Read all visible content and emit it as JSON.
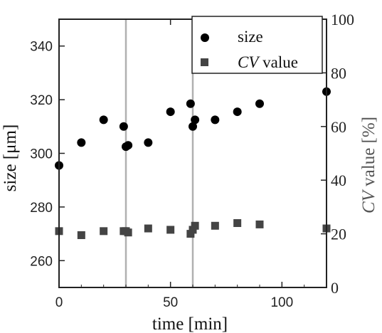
{
  "chart_data": {
    "type": "scatter",
    "xlabel": "time [min]",
    "ylabel": "size [μm]",
    "y2label": "CV value [%]",
    "y2label_italic_part": "CV",
    "y2label_rest": " value [%]",
    "xlim": [
      0,
      120
    ],
    "ylim": [
      250,
      350
    ],
    "y2lim": [
      0,
      100
    ],
    "x_ticks": [
      "0",
      "50",
      "100"
    ],
    "y_ticks": [
      "260",
      "280",
      "300",
      "320",
      "340"
    ],
    "y2_ticks": [
      "0",
      "20",
      "40",
      "60",
      "80",
      "100"
    ],
    "grid": false,
    "legend_position": "top-right",
    "vertical_lines_x": [
      30,
      60
    ],
    "series": [
      {
        "name": "size",
        "axis": "left",
        "marker": "circle",
        "color": "#000000",
        "x": [
          0,
          10,
          20,
          29,
          30,
          31,
          40,
          50,
          59,
          60,
          61,
          70,
          80,
          90,
          120
        ],
        "y": [
          295.5,
          304,
          312.5,
          310,
          302.5,
          303,
          304,
          315.5,
          318.5,
          310,
          312.5,
          312.5,
          315.5,
          318.5,
          323
        ]
      },
      {
        "name": "CV value",
        "name_italic_part": "CV",
        "name_rest": " value",
        "axis": "right",
        "marker": "square",
        "color": "#444444",
        "x": [
          0,
          10,
          20,
          29,
          30,
          31,
          40,
          50,
          59,
          60,
          61,
          70,
          80,
          90,
          120
        ],
        "y": [
          21,
          19.5,
          21,
          21,
          21,
          20.5,
          22,
          21.5,
          20,
          21.5,
          23,
          23,
          24,
          23.5,
          22
        ]
      }
    ]
  }
}
